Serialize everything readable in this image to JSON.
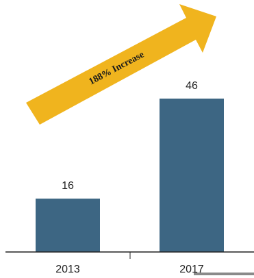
{
  "chart_data": {
    "type": "bar",
    "categories": [
      "2013",
      "2017"
    ],
    "values": [
      16,
      46
    ],
    "ylim": [
      0,
      50
    ],
    "grid": false,
    "annotation": "188% Increase"
  },
  "colors": {
    "bar": "#3d6683",
    "arrow": "#f0b41e",
    "axis": "#222222"
  }
}
